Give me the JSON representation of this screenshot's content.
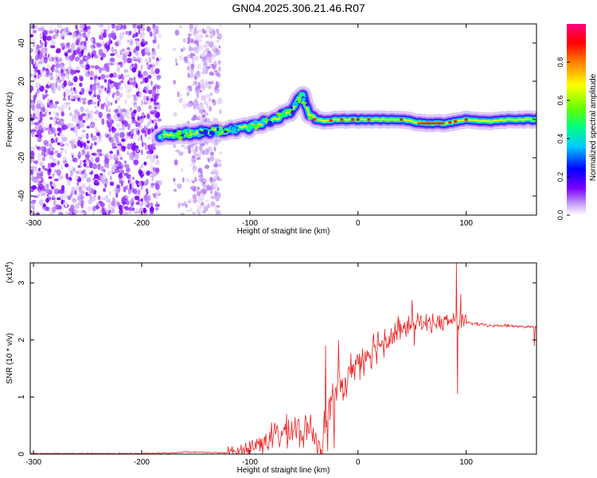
{
  "title": "GN04.2025.306.21.46.R07",
  "chart_data": [
    {
      "type": "heatmap",
      "name": "spectrogram",
      "xlabel": "Height of straight line (km)",
      "ylabel": "Frequency (Hz)",
      "xlim": [
        -303,
        165
      ],
      "ylim": [
        -50,
        50
      ],
      "xticks": [
        -300,
        -200,
        -100,
        0,
        100
      ],
      "yticks": [
        -40,
        -20,
        0,
        20,
        40
      ],
      "noise_region": [
        -303,
        -183
      ],
      "noise_gap": [
        -170,
        -157
      ],
      "noise_region_2": [
        -157,
        -127
      ],
      "ridge": {
        "x": [
          -183,
          -170,
          -150,
          -130,
          -110,
          -100,
          -90,
          -80,
          -70,
          -60,
          -55,
          -52,
          -48,
          -45,
          -40,
          -30,
          -20,
          0,
          20,
          40,
          60,
          80,
          100,
          120,
          140,
          165
        ],
        "y": [
          -8,
          -8,
          -7,
          -6,
          -5,
          -4,
          -2,
          0,
          2,
          5,
          10,
          13,
          8,
          3,
          0,
          -1,
          0,
          0,
          0,
          0,
          -2,
          -2,
          0,
          -1,
          0,
          0
        ]
      },
      "colorbar": {
        "label": "Normalized spectral amplitude",
        "range": [
          0,
          1
        ],
        "ticks": [
          "0.0",
          "0.2",
          "0.4",
          "0.6",
          "0.8"
        ],
        "colors": [
          "#ffffff",
          "#c49cf5",
          "#7b00ff",
          "#0000ff",
          "#00ccff",
          "#00ff80",
          "#66ff00",
          "#ffff00",
          "#ff8000",
          "#ff0000",
          "#ff0080"
        ]
      }
    },
    {
      "type": "line",
      "name": "snr",
      "xlabel": "Height of straight line (km)",
      "ylabel": "SNR (10 * v/v)",
      "multiplier": "(x10",
      "multiplier_exp": "4",
      "multiplier_close": ")",
      "xlim": [
        -303,
        165
      ],
      "ylim": [
        0,
        3.35
      ],
      "xticks": [
        -300,
        -200,
        -100,
        0,
        100
      ],
      "yticks": [
        0,
        1,
        2,
        3
      ],
      "color": "#ee2222",
      "x": [
        -303,
        -250,
        -200,
        -170,
        -160,
        -140,
        -120,
        -110,
        -100,
        -90,
        -80,
        -70,
        -60,
        -50,
        -45,
        -40,
        -35,
        -30,
        -25,
        -20,
        -15,
        -10,
        -5,
        0,
        10,
        20,
        30,
        40,
        50,
        60,
        70,
        80,
        90,
        95,
        100,
        110,
        120,
        140,
        165
      ],
      "y": [
        0.01,
        0.01,
        0.01,
        0.02,
        0.04,
        0.03,
        0.02,
        0.05,
        0.1,
        0.2,
        0.3,
        0.35,
        0.45,
        0.35,
        0.45,
        0.3,
        0.2,
        0.55,
        0.85,
        1.05,
        1.2,
        1.3,
        1.55,
        1.6,
        1.8,
        1.95,
        2.05,
        2.15,
        2.3,
        2.3,
        2.3,
        2.3,
        2.35,
        2.3,
        2.3,
        2.28,
        2.25,
        2.25,
        2.22
      ],
      "spikes": [
        {
          "x": -30,
          "y": 1.9
        },
        {
          "x": -28,
          "y": 0.05
        },
        {
          "x": -22,
          "y": 0.1
        },
        {
          "x": -18,
          "y": 2.0
        },
        {
          "x": 50,
          "y": 2.7
        },
        {
          "x": 52,
          "y": 1.9
        },
        {
          "x": 91,
          "y": 3.35
        },
        {
          "x": 92,
          "y": 1.05
        },
        {
          "x": 95,
          "y": 2.8
        },
        {
          "x": 163,
          "y": 1.9
        }
      ]
    }
  ]
}
